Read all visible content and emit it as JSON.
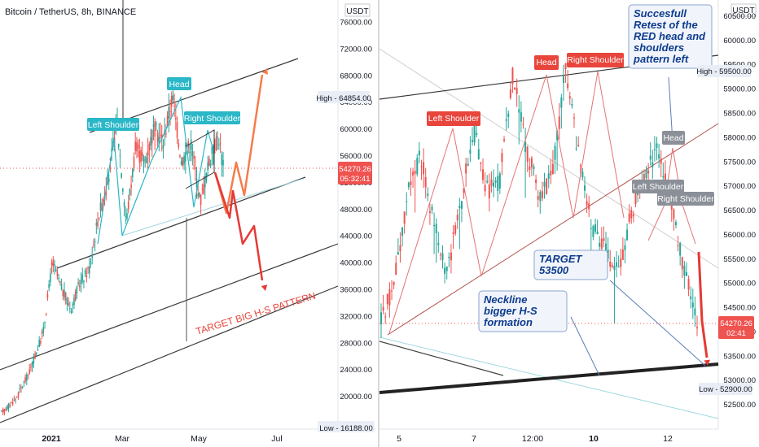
{
  "symbol": "Bitcoin / TetherUS, 8h, BINANCE",
  "colors": {
    "up": "#26a69a",
    "down": "#ef5350",
    "pattern_teal": "#2ab7c7",
    "red_label": "#e8453c",
    "grey_label": "#8a8f98",
    "annotation_blue": "#0d3b8e",
    "annotation_bg": "#f1f5fb",
    "proj_orange": "#f57c4a",
    "proj_red": "#e53935"
  },
  "chart_data": [
    {
      "type": "candlestick",
      "title": "Bitcoin / TetherUS, 8h, BINANCE",
      "currency_label": "USDT",
      "ylim": [
        16000,
        78500
      ],
      "y_ticks": [
        76000,
        72000,
        68000,
        64000,
        60000,
        56000,
        52000,
        48000,
        44000,
        40000,
        36000,
        32000,
        28000,
        24000,
        20000
      ],
      "x_ticks": [
        "2021",
        "Mar",
        "May",
        "Jul"
      ],
      "price_tags": [
        {
          "prefix": "High",
          "value": "64854.00"
        },
        {
          "value": "54270.26",
          "sub": "05:32:41"
        },
        {
          "prefix": "Low",
          "value": "16188.00"
        }
      ],
      "close_path": [
        [
          0,
          17500
        ],
        [
          6,
          19500
        ],
        [
          12,
          23500
        ],
        [
          18,
          29500
        ],
        [
          22,
          40000
        ],
        [
          26,
          36000
        ],
        [
          30,
          33000
        ],
        [
          34,
          37000
        ],
        [
          38,
          39000
        ],
        [
          42,
          47000
        ],
        [
          46,
          52000
        ],
        [
          50,
          61000
        ],
        [
          54,
          46000
        ],
        [
          58,
          57000
        ],
        [
          62,
          55000
        ],
        [
          66,
          60000
        ],
        [
          70,
          58000
        ],
        [
          74,
          64854
        ],
        [
          78,
          55000
        ],
        [
          82,
          58000
        ],
        [
          86,
          49000
        ],
        [
          90,
          55000
        ],
        [
          94,
          59000
        ],
        [
          96,
          54270
        ]
      ],
      "annotations": {
        "left_shoulder": "Left Shoulder",
        "head": "Head",
        "right_shoulder": "Right Shoulder",
        "target": "TARGET BIG H-S PATTERN"
      }
    },
    {
      "type": "candlestick",
      "currency_label": "USDT",
      "ylim": [
        52150,
        60650
      ],
      "y_ticks": [
        60500,
        60000,
        59500,
        59000,
        58500,
        58000,
        57500,
        57000,
        56500,
        56000,
        55500,
        55000,
        54500,
        54000,
        53500,
        53000,
        52500
      ],
      "x_ticks": [
        "5",
        "7",
        "12:00",
        "10",
        "12"
      ],
      "price_tags": [
        {
          "prefix": "High",
          "value": "59500.00"
        },
        {
          "value": "54270.26",
          "sub": "02:41"
        },
        {
          "prefix": "Low",
          "value": "52900.00"
        }
      ],
      "close_path": [
        [
          0,
          54200
        ],
        [
          4,
          55000
        ],
        [
          8,
          56800
        ],
        [
          12,
          57600
        ],
        [
          16,
          56200
        ],
        [
          20,
          55200
        ],
        [
          24,
          56500
        ],
        [
          28,
          58200
        ],
        [
          32,
          56900
        ],
        [
          36,
          57100
        ],
        [
          40,
          59300
        ],
        [
          44,
          57800
        ],
        [
          48,
          56800
        ],
        [
          52,
          57200
        ],
        [
          56,
          59400
        ],
        [
          60,
          57600
        ],
        [
          64,
          56200
        ],
        [
          68,
          55700
        ],
        [
          72,
          55200
        ],
        [
          76,
          56400
        ],
        [
          80,
          57200
        ],
        [
          84,
          57800
        ],
        [
          88,
          56700
        ],
        [
          92,
          55200
        ],
        [
          96,
          54270
        ]
      ],
      "annotations": {
        "left_shoulder_red": "Left Shoulder",
        "head_red": "Head",
        "right_shoulder_red": "Right Shoulder",
        "head_grey": "Head",
        "left_shoulder_grey": "Left Shoulder",
        "right_shoulder_grey": "Right Shoulder",
        "retest_note": "Succesfull Retest of the RED head and shoulders pattern left",
        "target_note": "TARGET 53500",
        "neckline_note": "Neckline bigger H-S formation"
      }
    }
  ]
}
